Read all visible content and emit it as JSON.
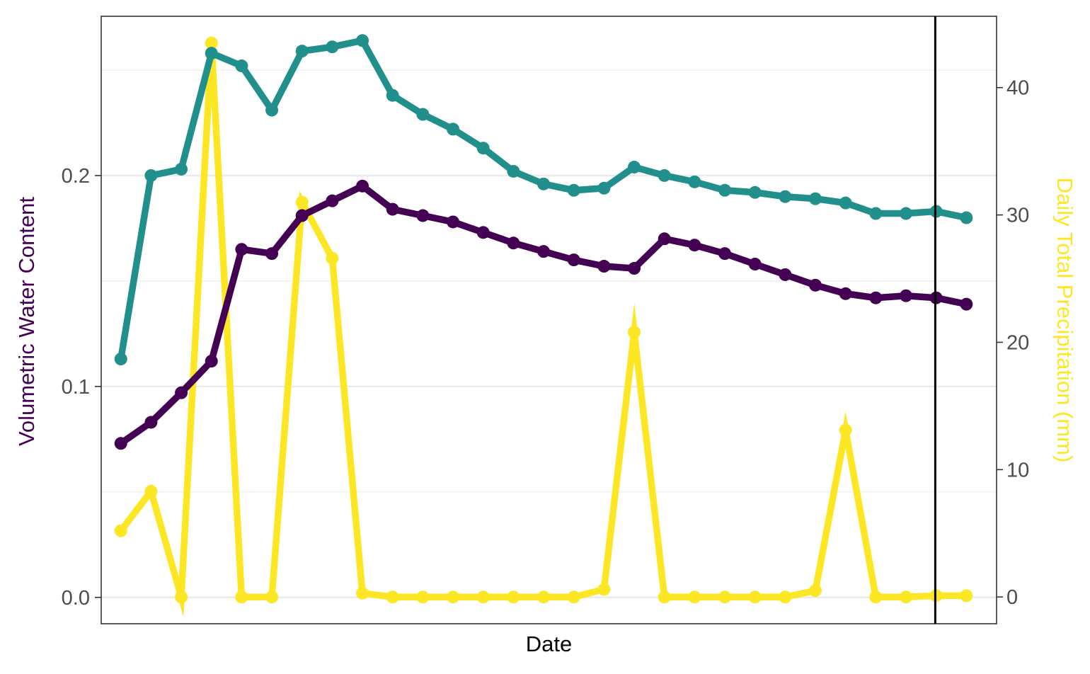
{
  "chart_data": {
    "type": "line",
    "xlabel": "Date",
    "ylabel_left": "Volumetric Water Content",
    "ylabel_right": "Daily Total Precipitation (mm)",
    "x": [
      1,
      2,
      3,
      4,
      5,
      6,
      7,
      8,
      9,
      10,
      11,
      12,
      13,
      14,
      15,
      16,
      17,
      18,
      19,
      20,
      21,
      22,
      23,
      24,
      25,
      26,
      27,
      28,
      29
    ],
    "x_tick_labels_shown": false,
    "ylim_left": [
      -0.0125,
      0.2755
    ],
    "yticks_left": [
      "0.0",
      "0.1",
      "0.2"
    ],
    "yticks_left_values": [
      0.0,
      0.1,
      0.2
    ],
    "ylim_right": [
      -2.1,
      45.6
    ],
    "yticks_right": [
      "0",
      "10",
      "20",
      "30",
      "40"
    ],
    "yticks_right_values": [
      0,
      10,
      20,
      30,
      40
    ],
    "grid": true,
    "vertical_line_at_x": 28,
    "series": [
      {
        "axis": "left",
        "color": "#440154",
        "values": [
          0.073,
          0.083,
          0.097,
          0.112,
          0.165,
          0.163,
          0.181,
          0.188,
          0.195,
          0.184,
          0.181,
          0.178,
          0.173,
          0.168,
          0.164,
          0.16,
          0.157,
          0.156,
          0.17,
          0.167,
          0.163,
          0.158,
          0.153,
          0.148,
          0.144,
          0.142,
          0.143,
          0.142,
          0.139
        ]
      },
      {
        "axis": "left",
        "color": "#21908C",
        "values": [
          0.113,
          0.2,
          0.203,
          0.258,
          0.252,
          0.231,
          0.259,
          0.261,
          0.264,
          0.238,
          0.229,
          0.222,
          0.213,
          0.202,
          0.196,
          0.193,
          0.194,
          0.204,
          0.2,
          0.197,
          0.193,
          0.192,
          0.19,
          0.189,
          0.187,
          0.182,
          0.182,
          0.183,
          0.18
        ]
      },
      {
        "axis": "right",
        "color": "#FDE725",
        "values": [
          5.2,
          8.3,
          0,
          43.5,
          0,
          0,
          31,
          26.6,
          0.3,
          0,
          0,
          0,
          0,
          0,
          0,
          0,
          0.6,
          20.8,
          0,
          0,
          0,
          0,
          0,
          0.5,
          13.1,
          0,
          0,
          0.1,
          0.1
        ]
      }
    ]
  }
}
